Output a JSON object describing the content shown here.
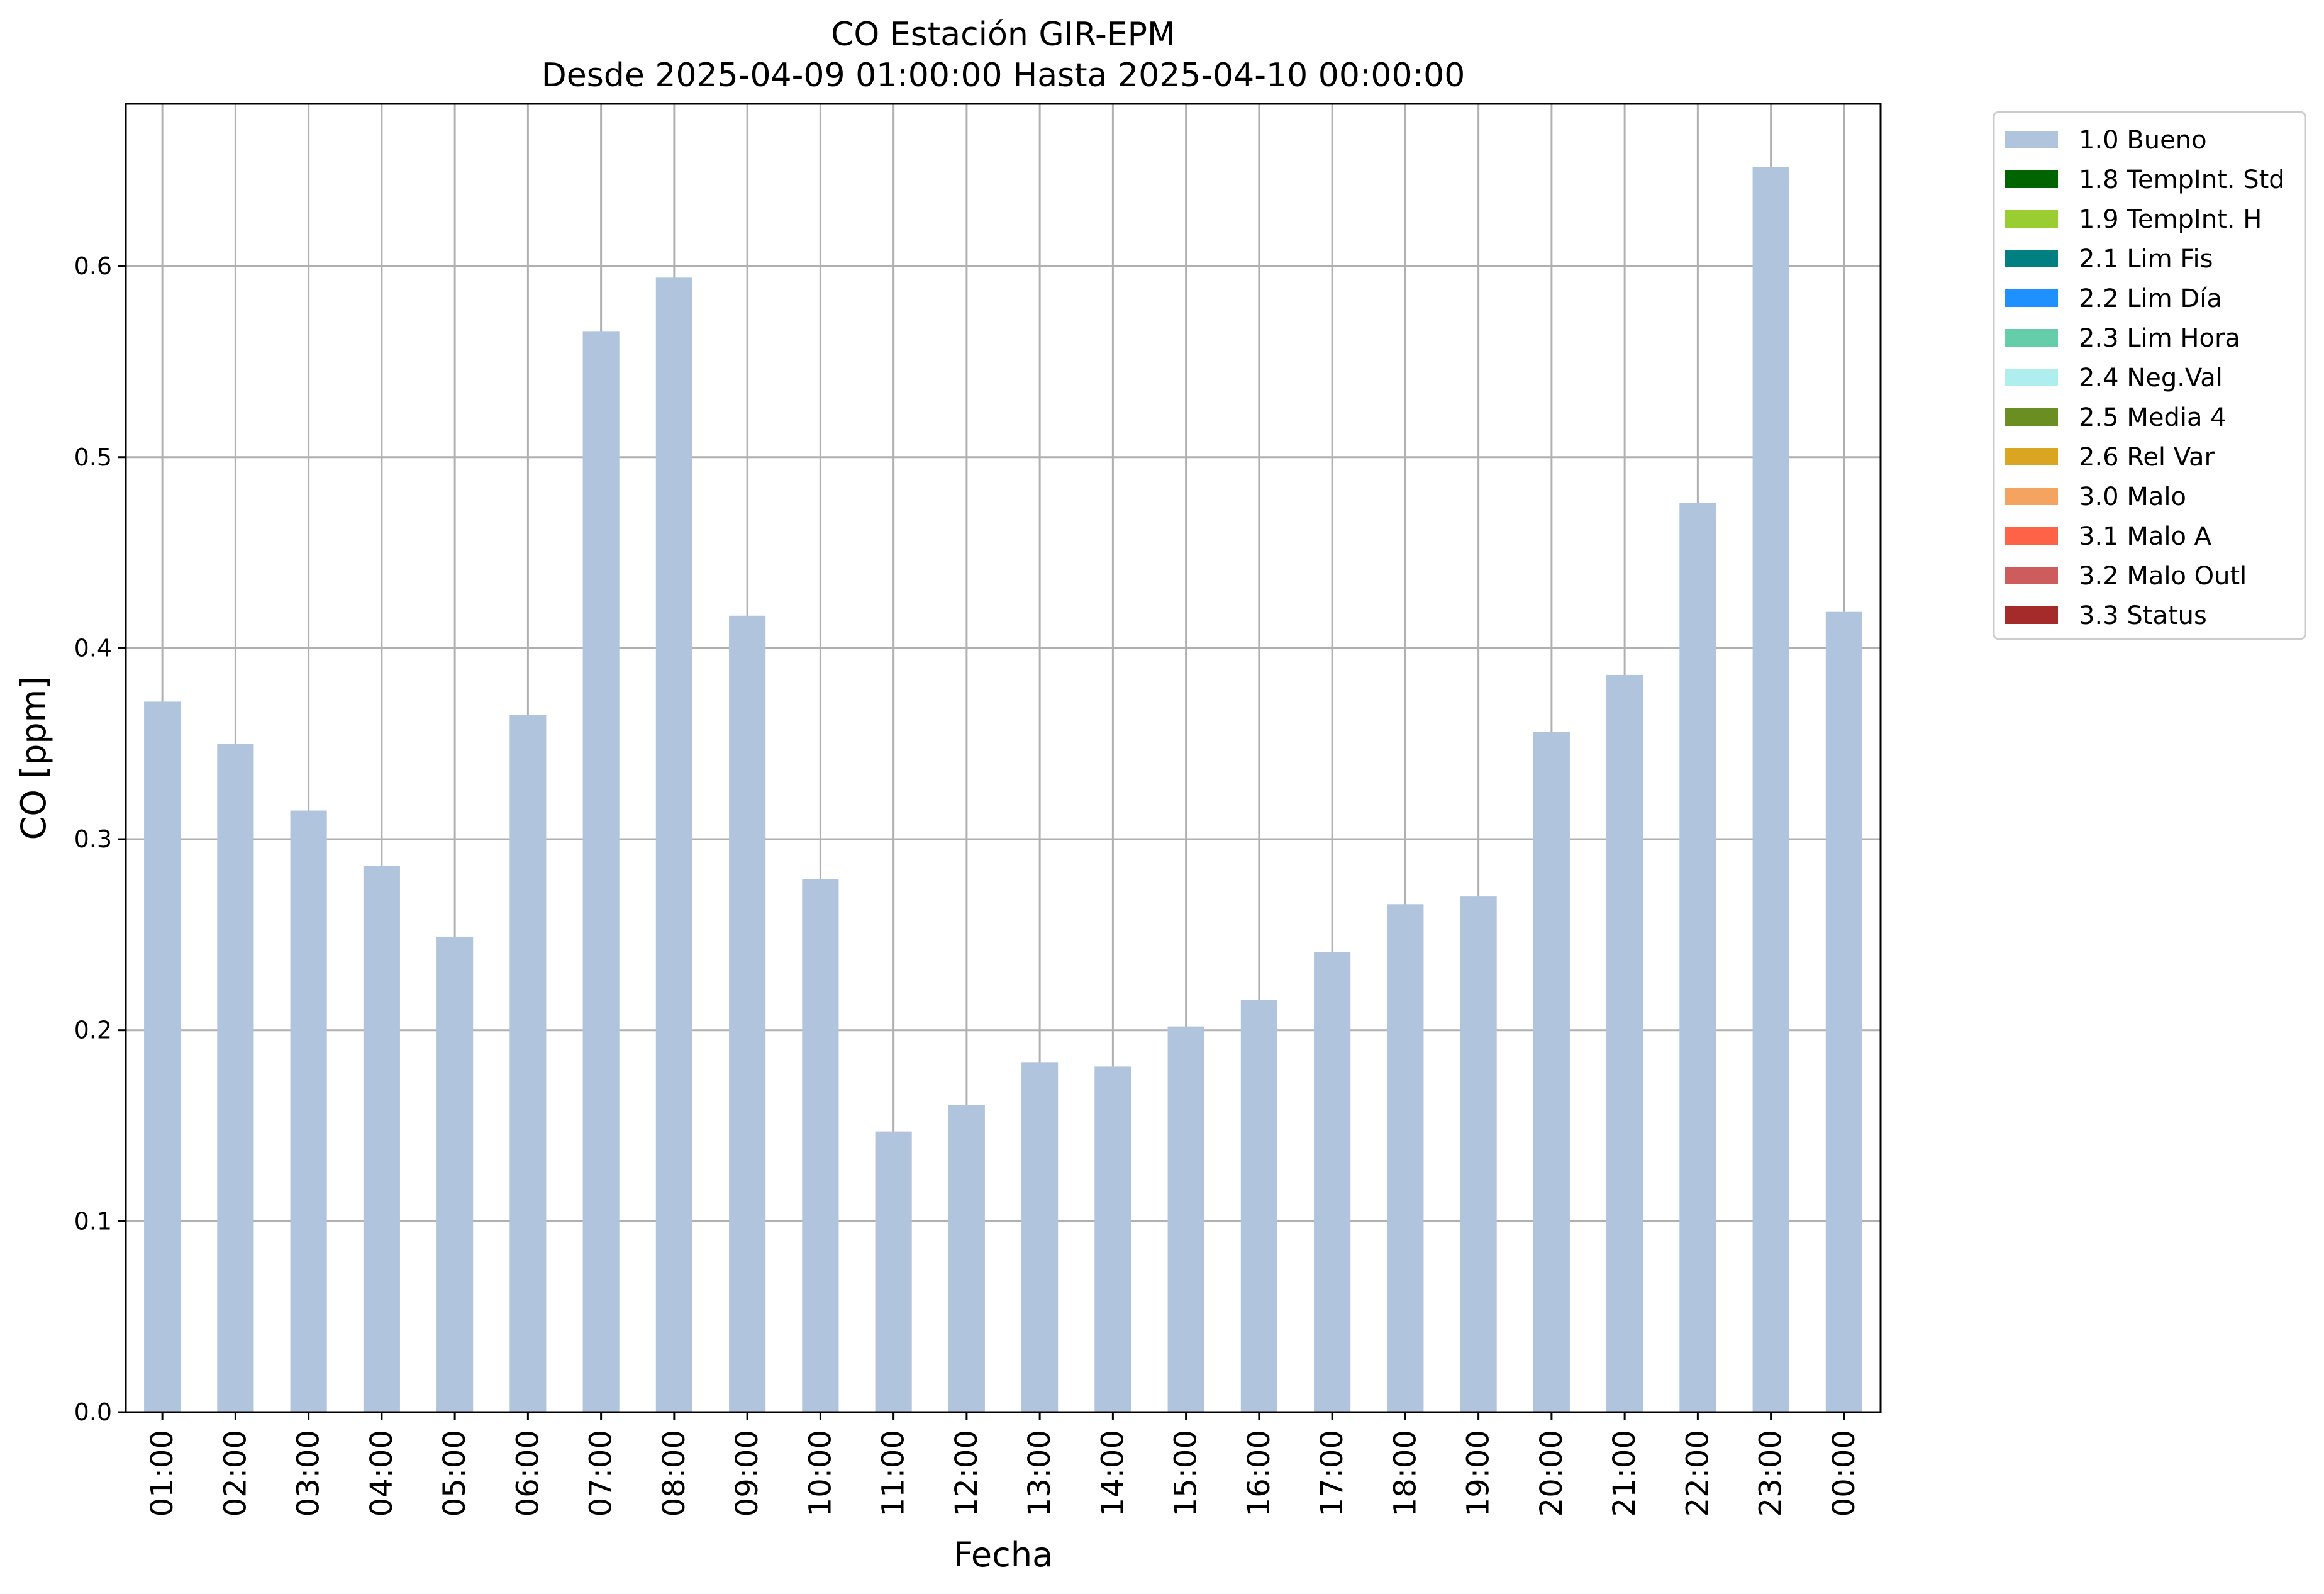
{
  "chart_data": {
    "type": "bar",
    "title": "CO Estación GIR-EPM",
    "subtitle": "Desde 2025-04-09 01:00:00 Hasta 2025-04-10 00:00:00",
    "xlabel": "Fecha",
    "ylabel": "CO [ppm]",
    "ylim": [
      0,
      0.685
    ],
    "yticks": [
      "0.0",
      "0.1",
      "0.2",
      "0.3",
      "0.4",
      "0.5",
      "0.6"
    ],
    "grid": true,
    "legend_position": "outside top-right",
    "categories": [
      "01:00",
      "02:00",
      "03:00",
      "04:00",
      "05:00",
      "06:00",
      "07:00",
      "08:00",
      "09:00",
      "10:00",
      "11:00",
      "12:00",
      "13:00",
      "14:00",
      "15:00",
      "16:00",
      "17:00",
      "18:00",
      "19:00",
      "20:00",
      "21:00",
      "22:00",
      "23:00",
      "00:00"
    ],
    "series": [
      {
        "name": "1.0 Bueno",
        "color": "#b0c4de",
        "values": [
          0.372,
          0.35,
          0.315,
          0.286,
          0.249,
          0.365,
          0.566,
          0.594,
          0.417,
          0.279,
          0.147,
          0.161,
          0.183,
          0.181,
          0.202,
          0.216,
          0.241,
          0.266,
          0.27,
          0.356,
          0.386,
          0.476,
          0.652,
          0.419
        ]
      }
    ],
    "legend": [
      {
        "label": "1.0 Bueno",
        "color": "#b0c4de"
      },
      {
        "label": "1.8 TempInt. Std",
        "color": "#006400"
      },
      {
        "label": "1.9 TempInt. H",
        "color": "#9acd32"
      },
      {
        "label": "2.1 Lim Fis",
        "color": "#008080"
      },
      {
        "label": "2.2 Lim Día",
        "color": "#1e90ff"
      },
      {
        "label": "2.3 Lim Hora",
        "color": "#66cdaa"
      },
      {
        "label": "2.4 Neg.Val",
        "color": "#afeeee"
      },
      {
        "label": "2.5 Media 4",
        "color": "#6b8e23"
      },
      {
        "label": "2.6 Rel Var",
        "color": "#daa520"
      },
      {
        "label": "3.0 Malo",
        "color": "#f4a460"
      },
      {
        "label": "3.1 Malo A",
        "color": "#ff6347"
      },
      {
        "label": "3.2 Malo Outl",
        "color": "#cd5c5c"
      },
      {
        "label": "3.3 Status",
        "color": "#a52a2a"
      }
    ]
  }
}
